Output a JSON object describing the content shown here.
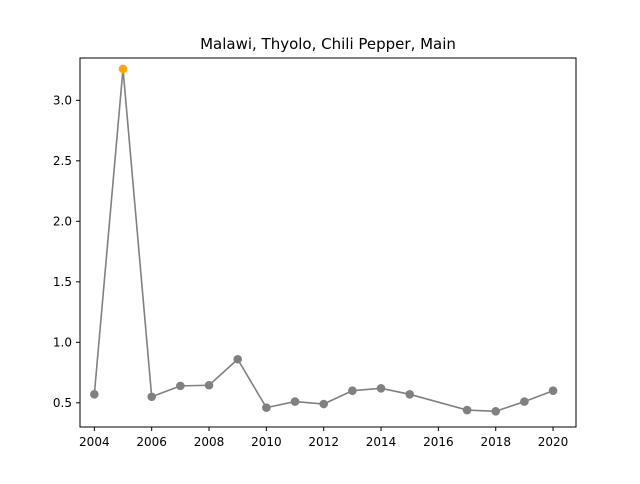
{
  "chart_data": {
    "type": "line",
    "title": "Malawi, Thyolo, Chili Pepper, Main",
    "xlabel": "",
    "ylabel": "",
    "xlim": [
      2003.5,
      2020.8
    ],
    "ylim": [
      0.3,
      3.35
    ],
    "xticks": [
      2004,
      2006,
      2008,
      2010,
      2012,
      2014,
      2016,
      2018,
      2020
    ],
    "xtick_labels": [
      "2004",
      "2006",
      "2008",
      "2010",
      "2012",
      "2014",
      "2016",
      "2018",
      "2020"
    ],
    "yticks": [
      0.5,
      1.0,
      1.5,
      2.0,
      2.5,
      3.0
    ],
    "ytick_labels": [
      "0.5",
      "1.0",
      "1.5",
      "2.0",
      "2.5",
      "3.0"
    ],
    "grid": false,
    "series": [
      {
        "x": [
          2004,
          2005,
          2006,
          2007,
          2008,
          2009,
          2010,
          2011,
          2012,
          2013,
          2014,
          2015,
          2017,
          2018,
          2019,
          2020
        ],
        "y": [
          0.57,
          3.26,
          0.55,
          0.64,
          0.645,
          0.86,
          0.46,
          0.51,
          0.49,
          0.6,
          0.62,
          0.57,
          0.44,
          0.43,
          0.51,
          0.6
        ],
        "color": "#808080",
        "highlight_color": "#ffa500",
        "highlight_index": 1
      }
    ]
  }
}
